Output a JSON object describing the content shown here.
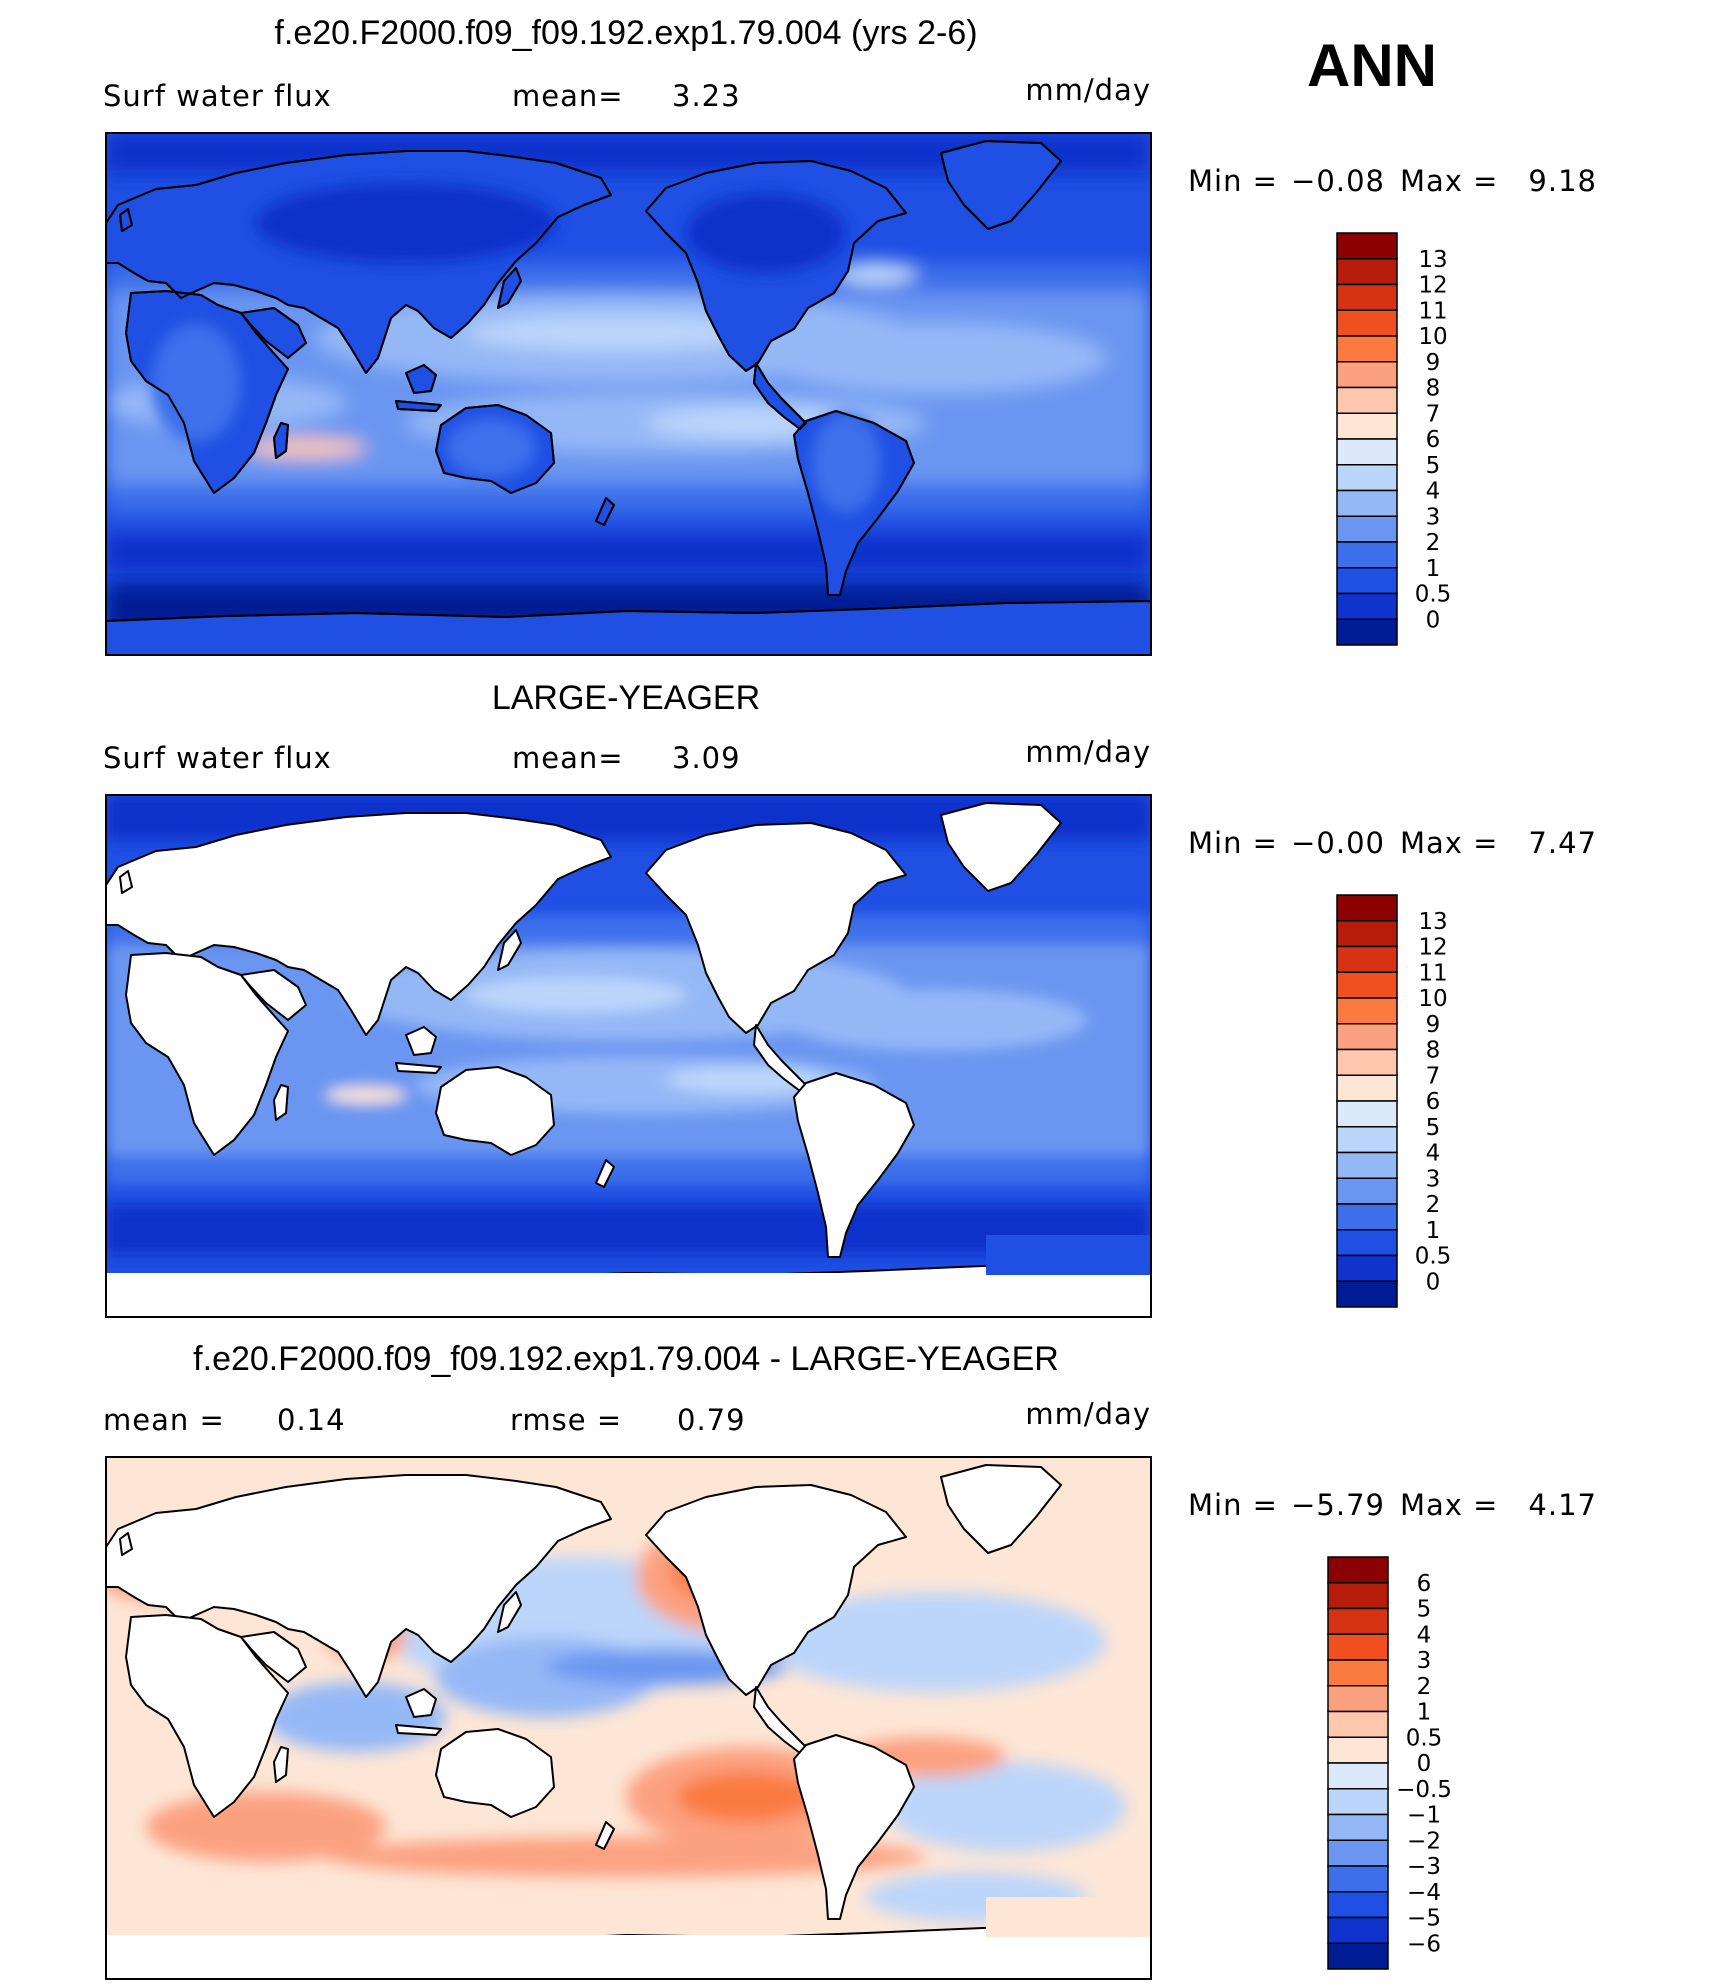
{
  "season": "ANN",
  "panels": [
    {
      "title": "f.e20.F2000.f09_f09.192.exp1.79.004 (yrs 2-6)",
      "left_label": "Surf  water  flux",
      "stat1_label": "mean=",
      "stat1_value": "3.23",
      "stat2_label": "",
      "stat2_value": "",
      "units": "mm/day",
      "min_label": "Min  =",
      "min_value": "−0.08",
      "max_label": "Max  =",
      "max_value": "9.18",
      "colorbar_levels": [
        "13",
        "12",
        "11",
        "10",
        "9",
        "8",
        "7",
        "6",
        "5",
        "4",
        "3",
        "2",
        "1",
        "0.5",
        "0"
      ],
      "colorbar_colors": [
        "#8b0000",
        "#b71c0a",
        "#d63315",
        "#f04f1f",
        "#fa7a40",
        "#fca180",
        "#fdc7ae",
        "#fde6d6",
        "#dbe9fb",
        "#bcd5fa",
        "#94b8f6",
        "#6a96f1",
        "#3d6fea",
        "#1f4fe3",
        "#0f33cc",
        "#001c94"
      ],
      "land_masked": false
    },
    {
      "title": "LARGE-YEAGER",
      "left_label": "Surf  water  flux",
      "stat1_label": "mean=",
      "stat1_value": "3.09",
      "stat2_label": "",
      "stat2_value": "",
      "units": "mm/day",
      "min_label": "Min  =",
      "min_value": "−0.00",
      "max_label": "Max  =",
      "max_value": "7.47",
      "colorbar_levels": [
        "13",
        "12",
        "11",
        "10",
        "9",
        "8",
        "7",
        "6",
        "5",
        "4",
        "3",
        "2",
        "1",
        "0.5",
        "0"
      ],
      "colorbar_colors": [
        "#8b0000",
        "#b71c0a",
        "#d63315",
        "#f04f1f",
        "#fa7a40",
        "#fca180",
        "#fdc7ae",
        "#fde6d6",
        "#dbe9fb",
        "#bcd5fa",
        "#94b8f6",
        "#6a96f1",
        "#3d6fea",
        "#1f4fe3",
        "#0f33cc",
        "#001c94"
      ],
      "land_masked": true
    },
    {
      "title": "f.e20.F2000.f09_f09.192.exp1.79.004 - LARGE-YEAGER",
      "left_label": "mean  =",
      "stat1_label": "0.14",
      "stat1_value": "",
      "stat2_label": "rmse  =",
      "stat2_value": "0.79",
      "units": "mm/day",
      "min_label": "Min  =",
      "min_value": "−5.79",
      "max_label": "Max  =",
      "max_value": "4.17",
      "colorbar_levels": [
        "6",
        "5",
        "4",
        "3",
        "2",
        "1",
        "0.5",
        "0",
        "−0.5",
        "−1",
        "−2",
        "−3",
        "−4",
        "−5",
        "−6"
      ],
      "colorbar_colors": [
        "#8b0000",
        "#b71c0a",
        "#d63315",
        "#f04f1f",
        "#fa7a40",
        "#fca180",
        "#fdc7ae",
        "#fde6d6",
        "#dbe9fb",
        "#bcd5fa",
        "#94b8f6",
        "#6a96f1",
        "#3d6fea",
        "#1f4fe3",
        "#0f33cc",
        "#001c94"
      ],
      "land_masked": true
    }
  ]
}
